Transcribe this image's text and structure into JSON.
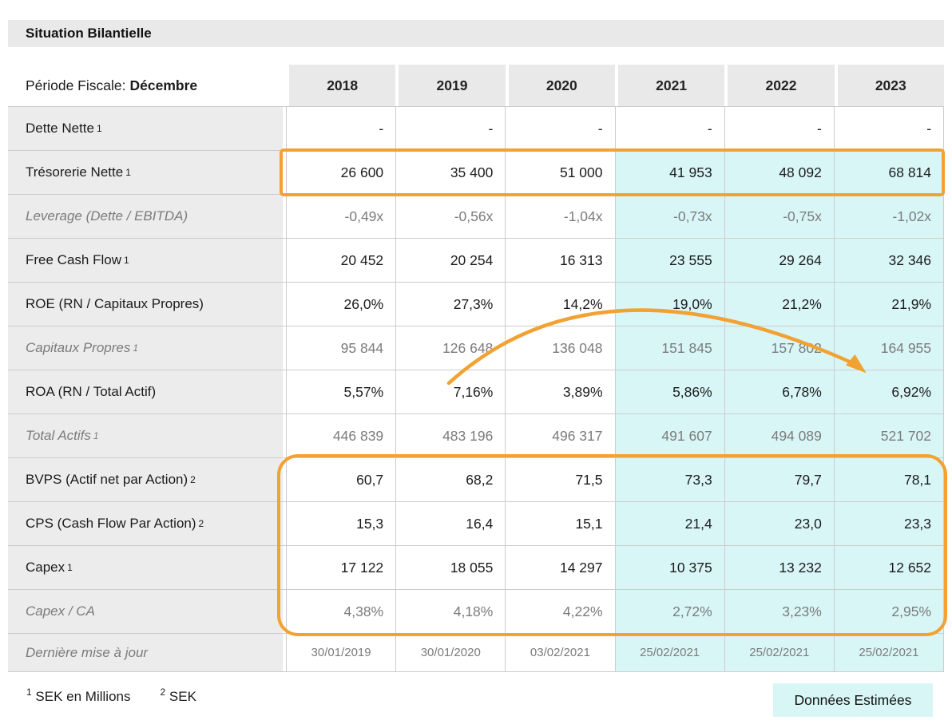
{
  "title": "Situation Bilantielle",
  "header": {
    "period_label": "Période Fiscale:",
    "period_value": "Décembre",
    "years": [
      "2018",
      "2019",
      "2020",
      "2021",
      "2022",
      "2023"
    ]
  },
  "table": {
    "rows": [
      {
        "label": "Dette Nette",
        "sup": "1",
        "muted": false,
        "small": false,
        "estimated": false,
        "values": [
          "-",
          "-",
          "-",
          "-",
          "-",
          "-"
        ]
      },
      {
        "label": "Trésorerie Nette",
        "sup": "1",
        "muted": false,
        "small": false,
        "estimated": true,
        "values": [
          "26 600",
          "35 400",
          "51 000",
          "41 953",
          "48 092",
          "68 814"
        ]
      },
      {
        "label": "Leverage (Dette / EBITDA)",
        "sup": "",
        "muted": true,
        "small": false,
        "estimated": true,
        "values": [
          "-0,49x",
          "-0,56x",
          "-1,04x",
          "-0,73x",
          "-0,75x",
          "-1,02x"
        ]
      },
      {
        "label": "Free Cash Flow",
        "sup": "1",
        "muted": false,
        "small": false,
        "estimated": true,
        "values": [
          "20 452",
          "20 254",
          "16 313",
          "23 555",
          "29 264",
          "32 346"
        ]
      },
      {
        "label": "ROE (RN / Capitaux Propres)",
        "sup": "",
        "muted": false,
        "small": false,
        "estimated": true,
        "values": [
          "26,0%",
          "27,3%",
          "14,2%",
          "19,0%",
          "21,2%",
          "21,9%"
        ]
      },
      {
        "label": "Capitaux Propres",
        "sup": "1",
        "muted": true,
        "small": false,
        "estimated": true,
        "values": [
          "95 844",
          "126 648",
          "136 048",
          "151 845",
          "157 802",
          "164 955"
        ]
      },
      {
        "label": "ROA (RN / Total Actif)",
        "sup": "",
        "muted": false,
        "small": false,
        "estimated": true,
        "values": [
          "5,57%",
          "7,16%",
          "3,89%",
          "5,86%",
          "6,78%",
          "6,92%"
        ]
      },
      {
        "label": "Total Actifs",
        "sup": "1",
        "muted": true,
        "small": false,
        "estimated": true,
        "values": [
          "446 839",
          "483 196",
          "496 317",
          "491 607",
          "494 089",
          "521 702"
        ]
      },
      {
        "label": "BVPS (Actif net par Action)",
        "sup": "2",
        "muted": false,
        "small": false,
        "estimated": true,
        "values": [
          "60,7",
          "68,2",
          "71,5",
          "73,3",
          "79,7",
          "78,1"
        ]
      },
      {
        "label": "CPS (Cash Flow Par Action)",
        "sup": "2",
        "muted": false,
        "small": false,
        "estimated": true,
        "values": [
          "15,3",
          "16,4",
          "15,1",
          "21,4",
          "23,0",
          "23,3"
        ]
      },
      {
        "label": "Capex",
        "sup": "1",
        "muted": false,
        "small": false,
        "estimated": true,
        "values": [
          "17 122",
          "18 055",
          "14 297",
          "10 375",
          "13 232",
          "12 652"
        ]
      },
      {
        "label": "Capex / CA",
        "sup": "",
        "muted": true,
        "small": false,
        "estimated": true,
        "values": [
          "4,38%",
          "4,18%",
          "4,22%",
          "2,72%",
          "3,23%",
          "2,95%"
        ]
      },
      {
        "label": "Dernière mise à jour",
        "sup": "",
        "muted": true,
        "small": true,
        "estimated": true,
        "values": [
          "30/01/2019",
          "30/01/2020",
          "03/02/2021",
          "25/02/2021",
          "25/02/2021",
          "25/02/2021"
        ]
      }
    ]
  },
  "footnotes": {
    "note1_sup": "1",
    "note1_text": "SEK en Millions",
    "note2_sup": "2",
    "note2_text": "SEK"
  },
  "legend": {
    "estimated_label": "Données Estimées"
  },
  "colors": {
    "accent_orange": "#f2a232",
    "estimate_cyan": "#d9f6f7",
    "header_gray": "#e9e9e9",
    "label_gray": "#ececec",
    "muted_text": "#7b7b7b"
  }
}
